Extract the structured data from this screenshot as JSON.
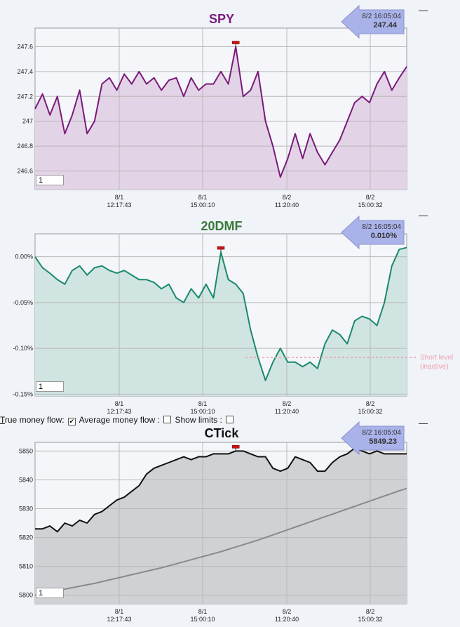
{
  "x_axis_labels": [
    {
      "date": "8/1",
      "time": "12:17:43"
    },
    {
      "date": "8/1",
      "time": "15:00:10"
    },
    {
      "date": "8/2",
      "time": "11:20:40"
    },
    {
      "date": "8/2",
      "time": "15:00:32"
    }
  ],
  "input_value": "1",
  "options_bar": {
    "true_money_flow_first": "T",
    "true_money_flow_rest": "rue money flow:",
    "true_money_flow_checked": "✔",
    "average_money_flow": "Average money flow :",
    "show_limits": "Show limits :"
  },
  "short_level_label": [
    "Short level",
    "(inactive)"
  ],
  "colors": {
    "spy_line": "#7a1a7a",
    "spy_fill": "#e2d3e6",
    "dmf_line": "#1a8a6a",
    "dmf_fill": "#d0e4e2",
    "dmf_title": "#3a7a3a",
    "ctick_line": "#111111",
    "ctick_fill": "#cfd1d4",
    "ctick_ma": "#8a8a8a",
    "badge": "#aab2ea",
    "short_level": "#f0a0b0"
  },
  "chart_data": [
    {
      "type": "area",
      "title": "SPY",
      "badge": {
        "time": "8/2 16:05:04",
        "value": "247.44"
      },
      "ylim": [
        246.45,
        247.75
      ],
      "yticks": [
        {
          "v": 247.6,
          "l": "247.6"
        },
        {
          "v": 247.4,
          "l": "247.4"
        },
        {
          "v": 247.2,
          "l": "247.2"
        },
        {
          "v": 247.0,
          "l": "247"
        },
        {
          "v": 246.8,
          "l": "246.8"
        },
        {
          "v": 246.6,
          "l": "246.6"
        }
      ],
      "x": [
        0,
        2,
        4,
        6,
        8,
        10,
        12,
        14,
        16,
        18,
        20,
        22,
        24,
        26,
        28,
        30,
        32,
        34,
        36,
        38,
        40,
        42,
        44,
        46,
        48,
        50,
        52,
        54,
        56,
        58,
        60,
        62,
        64,
        66,
        68,
        70,
        72,
        74,
        76,
        78,
        80,
        82,
        84,
        86,
        88,
        90,
        92,
        94,
        96,
        98,
        100
      ],
      "values": [
        247.1,
        247.22,
        247.05,
        247.2,
        246.9,
        247.05,
        247.25,
        246.9,
        247.0,
        247.3,
        247.35,
        247.25,
        247.38,
        247.3,
        247.4,
        247.3,
        247.35,
        247.25,
        247.33,
        247.35,
        247.2,
        247.35,
        247.25,
        247.3,
        247.3,
        247.4,
        247.3,
        247.6,
        247.2,
        247.25,
        247.4,
        247.0,
        246.8,
        246.55,
        246.7,
        246.9,
        246.7,
        246.9,
        246.75,
        246.65,
        246.75,
        246.85,
        247.0,
        247.15,
        247.2,
        247.15,
        247.3,
        247.4,
        247.25,
        247.35,
        247.44
      ],
      "grid": true
    },
    {
      "type": "area",
      "title": "20DMF",
      "badge": {
        "time": "8/2 16:05:04",
        "value": "0.010%"
      },
      "ylim": [
        -0.152,
        0.025
      ],
      "yticks": [
        {
          "v": 0.0,
          "l": "0.00%"
        },
        {
          "v": -0.05,
          "l": "-0.05%"
        },
        {
          "v": -0.1,
          "l": "-0.10%"
        },
        {
          "v": -0.15,
          "l": "-0.15%"
        }
      ],
      "x": [
        0,
        2,
        4,
        6,
        8,
        10,
        12,
        14,
        16,
        18,
        20,
        22,
        24,
        26,
        28,
        30,
        32,
        34,
        36,
        38,
        40,
        42,
        44,
        46,
        48,
        50,
        52,
        54,
        56,
        58,
        60,
        62,
        64,
        66,
        68,
        70,
        72,
        74,
        76,
        78,
        80,
        82,
        84,
        86,
        88,
        90,
        92,
        94,
        96,
        98,
        100
      ],
      "values": [
        0.0,
        -0.012,
        -0.018,
        -0.025,
        -0.03,
        -0.015,
        -0.01,
        -0.02,
        -0.012,
        -0.01,
        -0.015,
        -0.018,
        -0.015,
        -0.02,
        -0.025,
        -0.025,
        -0.028,
        -0.035,
        -0.03,
        -0.045,
        -0.05,
        -0.035,
        -0.045,
        -0.03,
        -0.045,
        0.005,
        -0.025,
        -0.03,
        -0.04,
        -0.08,
        -0.11,
        -0.135,
        -0.115,
        -0.1,
        -0.115,
        -0.115,
        -0.12,
        -0.115,
        -0.122,
        -0.095,
        -0.08,
        -0.085,
        -0.095,
        -0.07,
        -0.065,
        -0.068,
        -0.075,
        -0.05,
        -0.01,
        0.008,
        0.01
      ],
      "short_level": -0.11,
      "grid": true
    },
    {
      "type": "area",
      "title": "CTick",
      "badge": {
        "time": "8/2 16:05:04",
        "value": "5849.23"
      },
      "ylim": [
        5797,
        5853
      ],
      "yticks": [
        {
          "v": 5850,
          "l": "5850"
        },
        {
          "v": 5840,
          "l": "5840"
        },
        {
          "v": 5830,
          "l": "5830"
        },
        {
          "v": 5820,
          "l": "5820"
        },
        {
          "v": 5810,
          "l": "5810"
        },
        {
          "v": 5800,
          "l": "5800"
        }
      ],
      "x": [
        0,
        2,
        4,
        6,
        8,
        10,
        12,
        14,
        16,
        18,
        20,
        22,
        24,
        26,
        28,
        30,
        32,
        34,
        36,
        38,
        40,
        42,
        44,
        46,
        48,
        50,
        52,
        54,
        56,
        58,
        60,
        62,
        64,
        66,
        68,
        70,
        72,
        74,
        76,
        78,
        80,
        82,
        84,
        86,
        88,
        90,
        92,
        94,
        96,
        98,
        100
      ],
      "values": [
        5823,
        5823,
        5824,
        5822,
        5825,
        5824,
        5826,
        5825,
        5828,
        5829,
        5831,
        5833,
        5834,
        5836,
        5838,
        5842,
        5844,
        5845,
        5846,
        5847,
        5848,
        5847,
        5848,
        5848,
        5849,
        5849,
        5849,
        5850,
        5850,
        5849,
        5848,
        5848,
        5844,
        5843,
        5844,
        5848,
        5847,
        5846,
        5843,
        5843,
        5846,
        5848,
        5849,
        5851,
        5850,
        5849,
        5850,
        5849,
        5849,
        5849,
        5849
      ],
      "ma_values": [
        5800,
        5800.6,
        5801.1,
        5801.6,
        5802.1,
        5802.6,
        5803.1,
        5803.6,
        5804.1,
        5804.7,
        5805.3,
        5805.9,
        5806.5,
        5807.1,
        5807.7,
        5808.3,
        5808.9,
        5809.5,
        5810.2,
        5810.9,
        5811.6,
        5812.3,
        5813.0,
        5813.7,
        5814.4,
        5815.1,
        5815.9,
        5816.7,
        5817.5,
        5818.3,
        5819.1,
        5820,
        5820.9,
        5821.8,
        5822.7,
        5823.6,
        5824.5,
        5825.4,
        5826.3,
        5827.2,
        5828.1,
        5829.0,
        5829.9,
        5830.8,
        5831.7,
        5832.6,
        5833.5,
        5834.4,
        5835.3,
        5836.2,
        5837
      ]
    }
  ]
}
